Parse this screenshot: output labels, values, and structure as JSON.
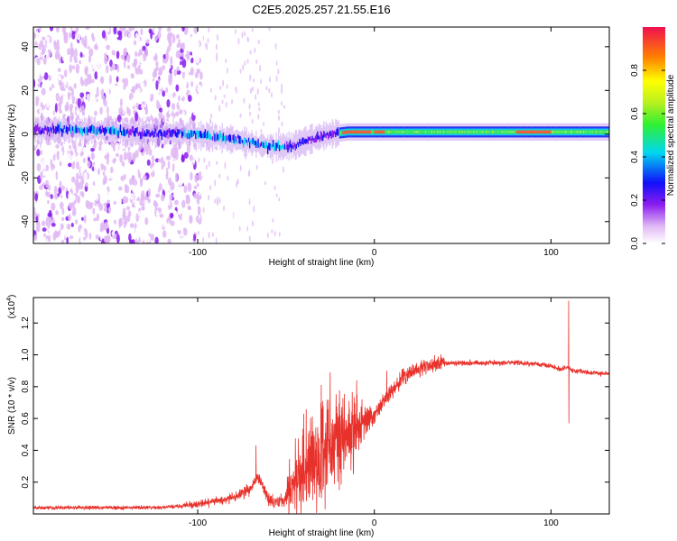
{
  "title": "C2E5.2025.257.21.55.E16",
  "chart_data": [
    {
      "type": "heatmap",
      "name": "spectrogram",
      "xlabel": "Height of straight line (km)",
      "ylabel": "Frequency (Hz)",
      "xlim": [
        -193,
        133
      ],
      "ylim": [
        -50,
        49
      ],
      "x_ticks": [
        -100,
        0,
        100
      ],
      "x_tick_labels": [
        "-100",
        "0",
        "100"
      ],
      "y_ticks": [
        40,
        20,
        0,
        -20,
        -40
      ],
      "y_tick_labels": [
        "40",
        "20",
        "0",
        "-20",
        "-40"
      ],
      "band_center_hz": [
        [
          -180,
          2
        ],
        [
          -165,
          2
        ],
        [
          -150,
          1.5
        ],
        [
          -135,
          0.5
        ],
        [
          -120,
          0.5
        ],
        [
          -105,
          0
        ],
        [
          -95,
          -1
        ],
        [
          -85,
          -2
        ],
        [
          -75,
          -3
        ],
        [
          -65,
          -5
        ],
        [
          -55,
          -6
        ],
        [
          -45,
          -5
        ],
        [
          -35,
          -2
        ],
        [
          -25,
          0
        ],
        [
          -15,
          1
        ],
        [
          0,
          1
        ],
        [
          20,
          1
        ],
        [
          60,
          1
        ],
        [
          100,
          1
        ],
        [
          133,
          1
        ]
      ],
      "colorbar": {
        "label": "Normalized spectral amplitude",
        "range": [
          0,
          1
        ],
        "ticks": [
          0.0,
          0.2,
          0.4,
          0.6,
          0.8
        ],
        "tick_labels": [
          "0.0",
          "0.2",
          "0.4",
          "0.6",
          "0.8"
        ]
      }
    },
    {
      "type": "line",
      "name": "snr",
      "xlabel": "Height of straight line (km)",
      "ylabel": "SNR (10 * v/v)",
      "y_multiplier": "(x10",
      "y_multiplier_exp": "4",
      "y_multiplier_close": ")",
      "xlim": [
        -193,
        133
      ],
      "ylim": [
        0,
        1.36
      ],
      "x_ticks": [
        -100,
        0,
        100
      ],
      "x_tick_labels": [
        "-100",
        "0",
        "100"
      ],
      "y_ticks": [
        0.2,
        0.4,
        0.6,
        0.8,
        1.0,
        1.2
      ],
      "y_tick_labels": [
        "0.2",
        "0.4",
        "0.6",
        "0.8",
        "1.0",
        "1.2"
      ],
      "color": "#e8312b",
      "series": [
        {
          "name": "SNR",
          "x": [
            -193,
            -150,
            -120,
            -100,
            -90,
            -80,
            -75,
            -70,
            -67,
            -64,
            -60,
            -55,
            -50,
            -45,
            -40,
            -35,
            -30,
            -25,
            -20,
            -15,
            -10,
            -5,
            0,
            5,
            10,
            15,
            20,
            30,
            40,
            60,
            80,
            95,
            100,
            105,
            108,
            110,
            112,
            115,
            120,
            133
          ],
          "y": [
            0.04,
            0.04,
            0.04,
            0.06,
            0.08,
            0.1,
            0.13,
            0.16,
            0.22,
            0.2,
            0.1,
            0.08,
            0.1,
            0.18,
            0.28,
            0.38,
            0.42,
            0.45,
            0.48,
            0.5,
            0.55,
            0.58,
            0.62,
            0.7,
            0.78,
            0.84,
            0.89,
            0.93,
            0.95,
            0.95,
            0.95,
            0.94,
            0.93,
            0.91,
            0.92,
            0.92,
            0.9,
            0.9,
            0.89,
            0.88
          ],
          "peak_max": [
            [
              -67,
              0.43
            ],
            [
              -40,
              0.63
            ],
            [
              -30,
              0.81
            ],
            [
              -25,
              0.89
            ],
            [
              -10,
              0.84
            ],
            [
              7,
              0.9
            ],
            [
              110,
              1.34
            ]
          ],
          "peak_min": [
            [
              -30,
              0.1
            ],
            [
              -20,
              0.15
            ],
            [
              110,
              0.57
            ]
          ]
        }
      ]
    }
  ]
}
